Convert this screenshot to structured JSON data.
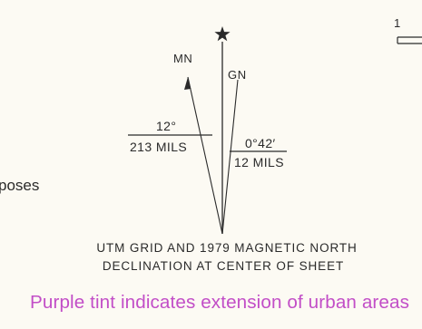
{
  "declination_diagram": {
    "true_north_symbol": "star-icon",
    "magnetic_north_label": "MN",
    "grid_north_label": "GN",
    "mn_angle_degrees": "12°",
    "mn_angle_mils": "213 MILS",
    "gn_angle_degrees": "0°42′",
    "gn_angle_mils": "12 MILS",
    "caption_line_1": "UTM GRID AND 1979 MAGNETIC NORTH",
    "caption_line_2": "DECLINATION AT CENTER OF SHEET"
  },
  "left_fragment_text": "poses",
  "right_fragment_number": "1",
  "urban_note": "Purple tint indicates extension of urban areas",
  "colors": {
    "paper": "#fcfaf3",
    "ink": "#2a2a2a",
    "purple_tint_text": "#c24ec7"
  }
}
